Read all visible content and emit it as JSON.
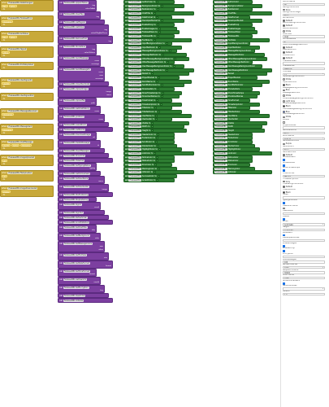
{
  "component": "FirebaseDB1",
  "kw": {
    "when": "when",
    "do": "do",
    "call": "call",
    "set": "set",
    "to": "to"
  },
  "events": [
    {
      "name": "FirebaseDB1.DataChanged",
      "params": [
        "tag",
        "value"
      ]
    },
    {
      "name": "FirebaseDB1.FirebaseError",
      "params": [
        "message"
      ]
    },
    {
      "name": "FirebaseDB1.GotValue",
      "params": [
        "tag",
        "value"
      ]
    },
    {
      "name": "FirebaseDB1.TagList",
      "params": [
        "value"
      ]
    },
    {
      "name": "FirebaseDB1.ProfileUpdated",
      "params": []
    },
    {
      "name": "FirebaseDB1.UserSignedIn",
      "params": [
        "userId"
      ]
    },
    {
      "name": "FirebaseDB1.UserSignedOut",
      "params": []
    },
    {
      "name": "FirebaseDB1.MessagesReceived",
      "params": [
        "messages"
      ]
    },
    {
      "name": "FirebaseDB1.MessageSent",
      "params": [
        "message"
      ]
    },
    {
      "name": "FirebaseDB1.ChatMessage",
      "params": [
        "userId",
        "name",
        "message"
      ]
    },
    {
      "name": "FirebaseDB1.ImageUploaded",
      "params": [
        "url"
      ]
    },
    {
      "name": "FirebaseDB1.FileUploaded",
      "params": [
        "url"
      ]
    },
    {
      "name": "FirebaseDB1.ImageDownloaded",
      "params": [
        "image"
      ]
    }
  ],
  "methods": [
    {
      "method": "FirebaseDB1.AppendValue",
      "args": [
        "tag",
        "valueToAdd"
      ]
    },
    {
      "method": "FirebaseDB1.ClearTag",
      "args": [
        "tag"
      ]
    },
    {
      "method": "FirebaseDB1.GetTagList",
      "args": []
    },
    {
      "method": "FirebaseDB1.GetValue",
      "args": [
        "tag",
        "valueIfTagNotThere"
      ]
    },
    {
      "method": "FirebaseDB1.RemoveFirst",
      "args": [
        "tag"
      ]
    },
    {
      "method": "FirebaseDB1.StoreValue",
      "args": [
        "tag",
        "valueToStore"
      ]
    },
    {
      "method": "FirebaseDB1.SendMessage",
      "args": [
        "room",
        "message"
      ]
    },
    {
      "method": "FirebaseDB1.SendMessageTo",
      "args": [
        "room",
        "user",
        "message"
      ]
    },
    {
      "method": "FirebaseDB1.Unauthenticate",
      "args": []
    },
    {
      "method": "FirebaseDB1.UploadImage",
      "args": [
        "image",
        "name"
      ]
    },
    {
      "method": "FirebaseDB1.UploadFile",
      "args": [
        "path"
      ]
    },
    {
      "method": "FirebaseDB1.GetChatHistory",
      "args": [
        "room"
      ]
    },
    {
      "method": "FirebaseDB1.JoinRoom",
      "args": [
        "room"
      ]
    },
    {
      "method": "FirebaseDB1.LeaveRoom",
      "args": []
    },
    {
      "method": "FirebaseDB1.ListRooms",
      "args": []
    },
    {
      "method": "FirebaseDB1.DownloadImage",
      "args": [
        "url"
      ]
    },
    {
      "method": "FirebaseDB1.DeleteMessage",
      "args": [
        "id"
      ]
    },
    {
      "method": "FirebaseDB1.ClearMessages",
      "args": []
    },
    {
      "method": "FirebaseDB1.ShowChat",
      "args": []
    },
    {
      "method": "FirebaseDB1.HideChat",
      "args": []
    },
    {
      "method": "FirebaseDB1.SetTypingStatus",
      "args": [
        "typing"
      ]
    },
    {
      "method": "FirebaseDB1.GetOnlineUsers",
      "args": []
    },
    {
      "method": "FirebaseDB1.SetUserName",
      "args": [
        "name"
      ]
    },
    {
      "method": "FirebaseDB1.SetUserAvatar",
      "args": [
        "image"
      ]
    },
    {
      "method": "FirebaseDB1.StartListening",
      "args": []
    },
    {
      "method": "FirebaseDB1.StopListening",
      "args": []
    },
    {
      "method": "FirebaseDB1.SignIn",
      "args": [
        "email"
      ]
    },
    {
      "method": "FirebaseDB1.SignOut",
      "args": []
    },
    {
      "method": "FirebaseDB1.RefreshChat",
      "args": []
    },
    {
      "method": "FirebaseDB1.ScrollToBottom",
      "args": []
    },
    {
      "method": "FirebaseDB1.SetChatTitle",
      "args": [
        "title"
      ]
    },
    {
      "method": "FirebaseDB1.SetBackground",
      "args": [
        "color"
      ]
    },
    {
      "method": "FirebaseDB1.SetMessageColors",
      "args": [
        "own",
        "other"
      ]
    },
    {
      "method": "FirebaseDB1.SetFontSize",
      "args": [
        "size"
      ]
    },
    {
      "method": "FirebaseDB1.SetDateFormat",
      "args": [
        "format"
      ]
    },
    {
      "method": "FirebaseDB1.SetTimeFormat",
      "args": [
        "format"
      ]
    },
    {
      "method": "FirebaseDB1.GetUserInfo",
      "args": [
        "userId"
      ]
    },
    {
      "method": "FirebaseDB1.SetEncryption",
      "args": [
        "key"
      ]
    },
    {
      "method": "FirebaseDB1.ResetChat",
      "args": []
    },
    {
      "method": "FirebaseDB1.Initialize",
      "args": []
    }
  ],
  "setters": [
    "AuthorColor",
    "BackgroundColor",
    "BubbleColor",
    "ChatTitle",
    "DateFormat",
    "DeveloperBucket",
    "EnableEmoji",
    "EnableImages",
    "FirebaseToken",
    "FirebaseURL",
    "FontSize",
    "InputBackgroundColor",
    "InputTextColor",
    "MessageBackgroundColor",
    "MessageTextColor",
    "OtherMessageBackgroundColor",
    "OtherMessageTextColor",
    "OwnMessageBackgroundColor",
    "OwnMessageTextColor",
    "Persist",
    "ProjectBucket",
    "RoomName",
    "SendButtonColor",
    "ShowAvatars",
    "ShowTimestamps",
    "ShowUserNames",
    "TimeFormat",
    "TimestampColor",
    "TitleColor",
    "TitleTextColor",
    "UserName",
    "UserAvatar",
    "Visible",
    "Width",
    "Height",
    "HeaderColor",
    "FooterColor",
    "ScrollColor",
    "DividerColor",
    "HighlightColor",
    "LinkColor",
    "NoticeColor",
    "StatusColor",
    "ErrorColor",
    "WarningColor",
    "InfoColor",
    "SuccessColor",
    "AccentColor"
  ],
  "getters": [
    "AuthorColor",
    "BackgroundColor",
    "BubbleColor",
    "ChatTitle",
    "DateFormat",
    "DeveloperBucket",
    "EnableEmoji",
    "EnableImages",
    "FirebaseToken",
    "FirebaseURL",
    "FontSize",
    "InputBackgroundColor",
    "InputTextColor",
    "MessageBackgroundColor",
    "MessageTextColor",
    "OtherMessageBackgroundColor",
    "OtherMessageTextColor",
    "OwnMessageBackgroundColor",
    "OwnMessageTextColor",
    "Persist",
    "ProjectBucket",
    "RoomName",
    "SendButtonColor",
    "ShowAvatars",
    "ShowTimestamps",
    "ShowUserNames",
    "TimeFormat",
    "TimestampColor",
    "TitleColor",
    "TitleTextColor",
    "UserName",
    "UserAvatar",
    "Visible",
    "Width",
    "Height",
    "HeaderColor",
    "FooterColor",
    "ScrollColor",
    "DividerColor",
    "HighlightColor",
    "LinkColor",
    "NoticeColor",
    "StatusColor",
    "ErrorColor",
    "WarningColor",
    "InfoColor"
  ],
  "properties": [
    {
      "label": "AuthorName",
      "type": "text",
      "value": "Me"
    },
    {
      "label": "BackgroundColor",
      "type": "color",
      "value": "None",
      "color": "#ffffff"
    },
    {
      "label": "BackgroundImage",
      "type": "text",
      "value": "None"
    },
    {
      "label": "BorderColor",
      "type": "color",
      "value": "Default",
      "color": "#444444"
    },
    {
      "label": "ButtonBackgroundColor",
      "type": "color",
      "value": "Default",
      "color": "#444444"
    },
    {
      "label": "ButtonTextColor",
      "type": "color",
      "value": "White",
      "color": "#ffffff"
    },
    {
      "label": "ChatTitle",
      "type": "text",
      "value": "Chat"
    },
    {
      "label": "CornerRadius",
      "type": "text",
      "value": "8"
    },
    {
      "label": "CustomMessageTextColor",
      "type": "color",
      "value": "Default",
      "color": "#444444"
    },
    {
      "label": "DateTextColor",
      "type": "color",
      "value": "Default",
      "color": "#444444"
    },
    {
      "label": "DividerColor",
      "type": "color",
      "value": "Default",
      "color": "#444444"
    },
    {
      "label": "FirebaseToken",
      "type": "text",
      "value": ""
    },
    {
      "label": "FirebaseURL",
      "type": "text",
      "value": "DEFAULT"
    },
    {
      "label": "FontSize",
      "type": "text",
      "value": "14"
    },
    {
      "label": "InputBackgroundColor",
      "type": "color",
      "value": "White",
      "color": "#ffffff"
    },
    {
      "label": "InputTextColor",
      "type": "color",
      "value": "Black",
      "color": "#000000"
    },
    {
      "label": "MessageBackgroundColor",
      "type": "color",
      "value": "Blue",
      "color": "#2962ff"
    },
    {
      "label": "MessageTextColor",
      "type": "color",
      "value": "White",
      "color": "#ffffff"
    },
    {
      "label": "OtherMessageBackgroundColor",
      "type": "color",
      "value": "Light Gray",
      "color": "#cccccc"
    },
    {
      "label": "OtherMessageTextColor",
      "type": "color",
      "value": "Black",
      "color": "#000000"
    },
    {
      "label": "OwnMessageBackgroundColor",
      "type": "color",
      "value": "Blue",
      "color": "#2962ff"
    },
    {
      "label": "OwnMessageTextColor",
      "type": "color",
      "value": "White",
      "color": "#ffffff"
    },
    {
      "label": "Persist",
      "type": "check",
      "value": "",
      "checked": false
    },
    {
      "label": "ProjectBucket",
      "type": "text",
      "value": ""
    },
    {
      "label": "ReceiveSound",
      "type": "text",
      "value": "None"
    },
    {
      "label": "RoomName",
      "type": "text",
      "value": "Default"
    },
    {
      "label": "SendButtonColor",
      "type": "color",
      "value": "Purple",
      "color": "#9c27b0"
    },
    {
      "label": "SendSound",
      "type": "text",
      "value": "None"
    },
    {
      "label": "SentTextColor",
      "type": "color",
      "value": "Default",
      "color": "#444444"
    },
    {
      "label": "ShowAvatars",
      "type": "check",
      "value": "",
      "checked": true
    },
    {
      "label": "ShowNames",
      "type": "check",
      "value": "",
      "checked": true
    },
    {
      "label": "ShowTimestamps",
      "type": "check",
      "value": "",
      "checked": true
    },
    {
      "label": "TimeFormat",
      "type": "text",
      "value": "HH:mm"
    },
    {
      "label": "TimestampColor",
      "type": "color",
      "value": "Gray",
      "color": "#888888"
    },
    {
      "label": "TitleBackgroundColor",
      "type": "color",
      "value": "Default",
      "color": "#444444"
    },
    {
      "label": "TitleTextColor",
      "type": "color",
      "value": "Black",
      "color": "#000000"
    },
    {
      "label": "Token",
      "type": "text",
      "value": ""
    },
    {
      "label": "TypingIndicator",
      "type": "check",
      "value": "",
      "checked": true
    },
    {
      "label": "UseDarkTheme",
      "type": "check",
      "value": "",
      "checked": false
    },
    {
      "label": "UserName",
      "type": "text",
      "value": ""
    },
    {
      "label": "Visible",
      "type": "check",
      "value": "",
      "checked": true
    },
    {
      "label": "Width",
      "type": "text",
      "value": "Automatic"
    },
    {
      "label": "Height",
      "type": "text",
      "value": "Automatic"
    },
    {
      "label": "Persistent",
      "type": "check",
      "value": "",
      "checked": true
    },
    {
      "label": "DeveloperBucket",
      "type": "text",
      "value": ""
    },
    {
      "label": "EnableImages",
      "type": "check",
      "value": "",
      "checked": true
    },
    {
      "label": "EnableEmoji",
      "type": "check",
      "value": "",
      "checked": true
    },
    {
      "label": "Encryption",
      "type": "text",
      "value": ""
    },
    {
      "label": "MaxMessages",
      "type": "text",
      "value": "100"
    },
    {
      "label": "RefreshInterval",
      "type": "text",
      "value": "1000"
    },
    {
      "label": "RequestTimeout",
      "type": "text",
      "value": "30000"
    },
    {
      "label": "ChatTheme",
      "type": "text",
      "value": "Light"
    },
    {
      "label": "ShowOnlineUsers",
      "type": "check",
      "value": "",
      "checked": true
    },
    {
      "label": "ServerAddress",
      "type": "text",
      "value": ""
    },
    {
      "label": "Version",
      "type": "text",
      "value": "1.0"
    }
  ]
}
